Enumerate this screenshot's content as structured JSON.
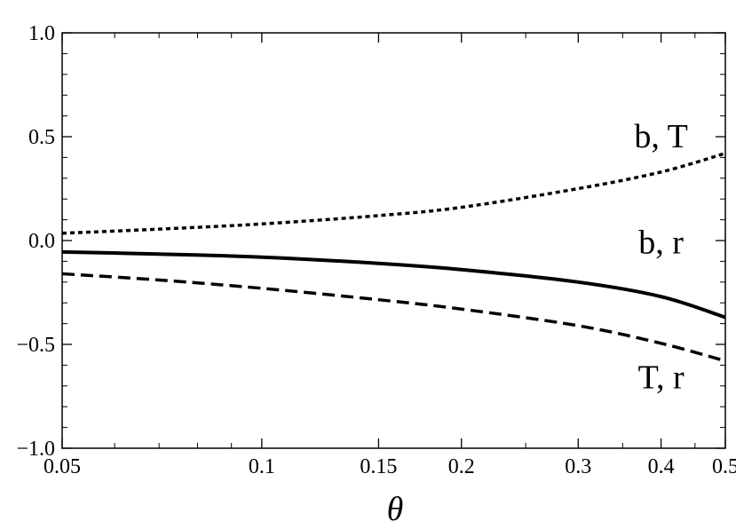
{
  "chart_data": {
    "type": "line",
    "title": "",
    "xlabel": "θ",
    "ylabel": "",
    "xscale": "log",
    "xlim": [
      0.05,
      0.5
    ],
    "ylim": [
      -1.0,
      1.0
    ],
    "grid": false,
    "legend": "none",
    "x_ticks": [
      {
        "value": 0.05,
        "label": "0.05"
      },
      {
        "value": 0.1,
        "label": "0.1"
      },
      {
        "value": 0.15,
        "label": "0.15"
      },
      {
        "value": 0.2,
        "label": "0.2"
      },
      {
        "value": 0.3,
        "label": "0.3"
      },
      {
        "value": 0.4,
        "label": "0.4"
      },
      {
        "value": 0.5,
        "label": "0.5"
      }
    ],
    "y_ticks": [
      {
        "value": 1.0,
        "label": "1.0"
      },
      {
        "value": 0.5,
        "label": "0.5"
      },
      {
        "value": 0.0,
        "label": "0.0"
      },
      {
        "value": -0.5,
        "label": "−0.5"
      },
      {
        "value": -1.0,
        "label": "−1.0"
      }
    ],
    "series": [
      {
        "name": "b, T",
        "style": "dotted",
        "color": "#000000",
        "x": [
          0.05,
          0.07,
          0.1,
          0.15,
          0.2,
          0.3,
          0.4,
          0.5
        ],
        "y": [
          0.035,
          0.055,
          0.08,
          0.12,
          0.16,
          0.25,
          0.33,
          0.42
        ]
      },
      {
        "name": "b, r",
        "style": "solid",
        "color": "#000000",
        "x": [
          0.05,
          0.07,
          0.1,
          0.15,
          0.2,
          0.3,
          0.4,
          0.5
        ],
        "y": [
          -0.055,
          -0.065,
          -0.08,
          -0.11,
          -0.14,
          -0.2,
          -0.27,
          -0.37
        ]
      },
      {
        "name": "T, r",
        "style": "dashed",
        "color": "#000000",
        "x": [
          0.05,
          0.07,
          0.1,
          0.15,
          0.2,
          0.3,
          0.4,
          0.5
        ],
        "y": [
          -0.16,
          -0.19,
          -0.23,
          -0.285,
          -0.33,
          -0.41,
          -0.495,
          -0.58
        ]
      }
    ],
    "annotations": [
      {
        "text": "b, T",
        "series": "b, T",
        "x": 0.4,
        "y": 0.5
      },
      {
        "text": "b, r",
        "series": "b, r",
        "x": 0.4,
        "y": -0.01
      },
      {
        "text": "T, r",
        "series": "T, r",
        "x": 0.4,
        "y": -0.66
      }
    ]
  }
}
